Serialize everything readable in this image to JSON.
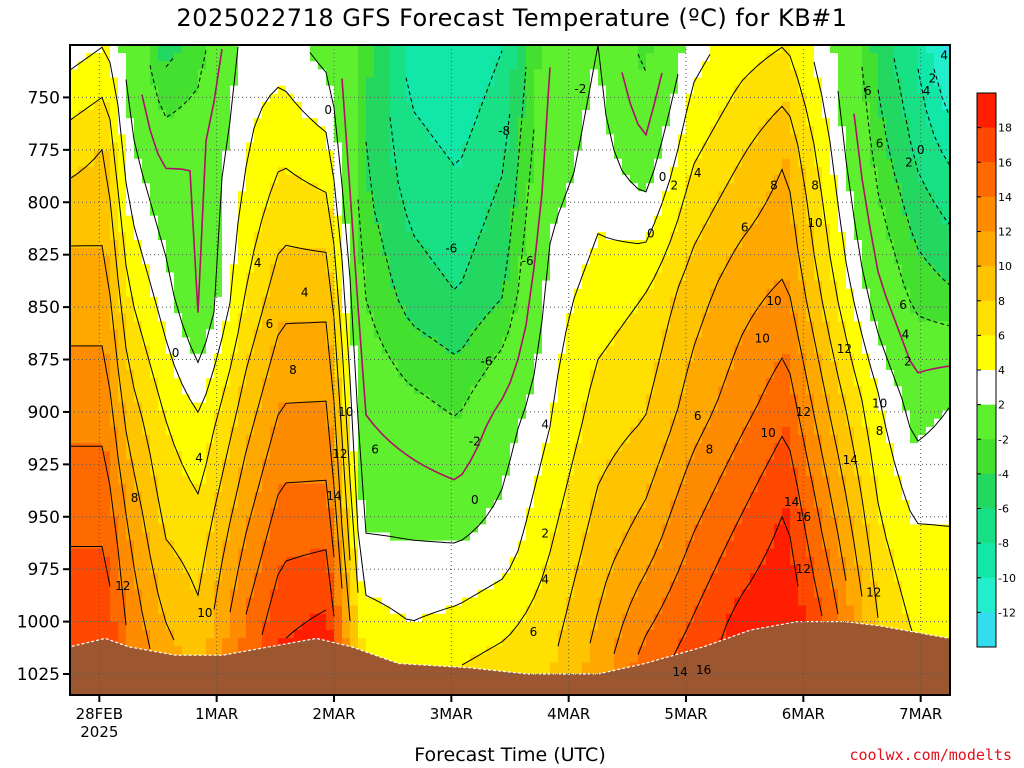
{
  "chart_data": {
    "type": "heatmap",
    "title": "2025022718 GFS Forecast Temperature (ºC) for KB#1",
    "xlabel": "Forecast Time (UTC)",
    "ylabel": "",
    "credit": "coolwx.com/modelts",
    "y_axis": {
      "reversed": true,
      "ylim": [
        1035,
        725
      ],
      "ticks": [
        "750",
        "775",
        "800",
        "825",
        "850",
        "875",
        "900",
        "925",
        "950",
        "975",
        "1000",
        "1025"
      ]
    },
    "x_axis": {
      "ticks": [
        {
          "label": "28FEB",
          "sub": "2025",
          "day": 0.75
        },
        {
          "label": "1MAR",
          "sub": "",
          "day": 1.75
        },
        {
          "label": "2MAR",
          "sub": "",
          "day": 2.75
        },
        {
          "label": "3MAR",
          "sub": "",
          "day": 3.75
        },
        {
          "label": "4MAR",
          "sub": "",
          "day": 4.75
        },
        {
          "label": "5MAR",
          "sub": "",
          "day": 5.75
        },
        {
          "label": "6MAR",
          "sub": "",
          "day": 6.75
        },
        {
          "label": "7MAR",
          "sub": "",
          "day": 7.75
        }
      ],
      "xlim": [
        0.5,
        8.0
      ]
    },
    "grid": true,
    "colorbar": {
      "levels": [
        -14,
        -12,
        -10,
        -8,
        -6,
        -4,
        -2,
        2,
        4,
        6,
        8,
        10,
        12,
        14,
        16,
        18,
        20
      ],
      "labels": [
        "-12",
        "-10",
        "-8",
        "-6",
        "-4",
        "-2",
        "2",
        "4",
        "6",
        "8",
        "10",
        "12",
        "14",
        "16",
        "18"
      ],
      "colors": [
        "#33ddee",
        "#22eecc",
        "#11e8a8",
        "#18e085",
        "#22d860",
        "#44e030",
        "#5ef02e",
        "#ffffff",
        "#ffff00",
        "#ffe000",
        "#ffc400",
        "#ffa800",
        "#ff8c00",
        "#ff6a00",
        "#ff4800",
        "#ff1e00"
      ]
    },
    "temperature_columns": [
      {
        "day": 0.5,
        "p": [
          725,
          1012
        ],
        "t": [
          3,
          7,
          10,
          12,
          14,
          16,
          18
        ]
      },
      {
        "day": 0.8,
        "p": [
          725,
          1012
        ],
        "t": [
          4,
          8,
          10,
          12,
          14,
          16,
          18
        ]
      },
      {
        "day": 1.0,
        "p": [
          725,
          1015
        ],
        "t": [
          1,
          3,
          6,
          9,
          12,
          14
        ]
      },
      {
        "day": 1.3,
        "p": [
          725,
          1018
        ],
        "t": [
          -5,
          0,
          3,
          6,
          8,
          11
        ]
      },
      {
        "day": 1.6,
        "p": [
          725,
          1018
        ],
        "t": [
          -3,
          0,
          -1,
          4,
          7,
          9
        ]
      },
      {
        "day": 2.0,
        "p": [
          725,
          1016
        ],
        "t": [
          3,
          4,
          6,
          9,
          12,
          15
        ]
      },
      {
        "day": 2.3,
        "p": [
          725,
          1010
        ],
        "t": [
          3,
          6,
          9,
          12,
          15,
          18
        ]
      },
      {
        "day": 2.7,
        "p": [
          725,
          1008
        ],
        "t": [
          1,
          5,
          9,
          12,
          15,
          19
        ]
      },
      {
        "day": 3.0,
        "p": [
          725,
          1016
        ],
        "t": [
          -3,
          -4,
          -2,
          0,
          2,
          6
        ]
      },
      {
        "day": 3.4,
        "p": [
          725,
          1020
        ],
        "t": [
          -9,
          -7,
          -5,
          -1,
          2,
          5
        ]
      },
      {
        "day": 3.8,
        "p": [
          725,
          1022
        ],
        "t": [
          -10,
          -8,
          -6,
          -2,
          2,
          6
        ]
      },
      {
        "day": 4.2,
        "p": [
          725,
          1024
        ],
        "t": [
          -8,
          -6,
          -4,
          1,
          3,
          7
        ]
      },
      {
        "day": 4.6,
        "p": [
          725,
          1025
        ],
        "t": [
          0,
          1,
          3,
          4,
          6,
          8
        ]
      },
      {
        "day": 5.0,
        "p": [
          725,
          1025
        ],
        "t": [
          2,
          3,
          5,
          7,
          9,
          11
        ]
      },
      {
        "day": 5.4,
        "p": [
          725,
          1022
        ],
        "t": [
          -3,
          1,
          6,
          8,
          11,
          15
        ]
      },
      {
        "day": 5.8,
        "p": [
          725,
          1018
        ],
        "t": [
          3,
          6,
          9,
          11,
          14,
          17
        ]
      },
      {
        "day": 6.2,
        "p": [
          725,
          1008
        ],
        "t": [
          5,
          8,
          11,
          13,
          16,
          19
        ]
      },
      {
        "day": 6.6,
        "p": [
          725,
          1000
        ],
        "t": [
          6,
          10,
          12,
          15,
          18,
          20
        ]
      },
      {
        "day": 7.0,
        "p": [
          725,
          1000
        ],
        "t": [
          2,
          4,
          6,
          9,
          12,
          15
        ]
      },
      {
        "day": 7.4,
        "p": [
          725,
          1005
        ],
        "t": [
          -5,
          -3,
          0,
          4,
          6,
          8
        ]
      },
      {
        "day": 7.7,
        "p": [
          725,
          1010
        ],
        "t": [
          -8,
          -6,
          -3,
          1,
          4,
          6
        ]
      },
      {
        "day": 8.0,
        "p": [
          725,
          1012
        ],
        "t": [
          -13,
          -8,
          -4,
          2,
          4,
          6
        ]
      }
    ],
    "terrain_surface_pressure": [
      {
        "day": 0.5,
        "p": 1012
      },
      {
        "day": 0.8,
        "p": 1008
      },
      {
        "day": 1.0,
        "p": 1012
      },
      {
        "day": 1.4,
        "p": 1016
      },
      {
        "day": 1.8,
        "p": 1016
      },
      {
        "day": 2.2,
        "p": 1012
      },
      {
        "day": 2.6,
        "p": 1008
      },
      {
        "day": 2.9,
        "p": 1012
      },
      {
        "day": 3.3,
        "p": 1020
      },
      {
        "day": 3.9,
        "p": 1022
      },
      {
        "day": 4.4,
        "p": 1025
      },
      {
        "day": 5.0,
        "p": 1025
      },
      {
        "day": 5.4,
        "p": 1020
      },
      {
        "day": 5.9,
        "p": 1012
      },
      {
        "day": 6.3,
        "p": 1004
      },
      {
        "day": 6.7,
        "p": 1000
      },
      {
        "day": 7.1,
        "p": 1000
      },
      {
        "day": 7.4,
        "p": 1002
      },
      {
        "day": 7.8,
        "p": 1006
      },
      {
        "day": 8.0,
        "p": 1008
      }
    ],
    "contour_labels": [
      {
        "text": "0",
        "day": 2.7,
        "p": 756
      },
      {
        "text": "0",
        "day": 1.4,
        "p": 872
      },
      {
        "text": "4",
        "day": 2.1,
        "p": 829
      },
      {
        "text": "4",
        "day": 2.5,
        "p": 843
      },
      {
        "text": "6",
        "day": 2.2,
        "p": 858
      },
      {
        "text": "8",
        "day": 2.4,
        "p": 880
      },
      {
        "text": "10",
        "day": 2.85,
        "p": 900
      },
      {
        "text": "12",
        "day": 2.8,
        "p": 920
      },
      {
        "text": "14",
        "day": 2.75,
        "p": 940
      },
      {
        "text": "4",
        "day": 1.6,
        "p": 922
      },
      {
        "text": "8",
        "day": 1.05,
        "p": 941
      },
      {
        "text": "12",
        "day": 0.95,
        "p": 983
      },
      {
        "text": "10",
        "day": 1.65,
        "p": 996
      },
      {
        "text": "-2",
        "day": 4.85,
        "p": 746
      },
      {
        "text": "-8",
        "day": 4.2,
        "p": 766
      },
      {
        "text": "-6",
        "day": 3.75,
        "p": 822
      },
      {
        "text": "-6",
        "day": 4.4,
        "p": 828
      },
      {
        "text": "-6",
        "day": 4.05,
        "p": 876
      },
      {
        "text": "4",
        "day": 4.55,
        "p": 906
      },
      {
        "text": "-2",
        "day": 3.95,
        "p": 914
      },
      {
        "text": "0",
        "day": 3.95,
        "p": 942
      },
      {
        "text": "2",
        "day": 4.55,
        "p": 958
      },
      {
        "text": "4",
        "day": 4.55,
        "p": 980
      },
      {
        "text": "6",
        "day": 4.45,
        "p": 1005
      },
      {
        "text": "0",
        "day": 5.55,
        "p": 788
      },
      {
        "text": "2",
        "day": 5.65,
        "p": 792
      },
      {
        "text": "4",
        "day": 5.85,
        "p": 786
      },
      {
        "text": "0",
        "day": 5.45,
        "p": 815
      },
      {
        "text": "6",
        "day": 6.25,
        "p": 812
      },
      {
        "text": "8",
        "day": 6.5,
        "p": 792
      },
      {
        "text": "8",
        "day": 6.85,
        "p": 792
      },
      {
        "text": "10",
        "day": 6.85,
        "p": 810
      },
      {
        "text": "10",
        "day": 6.5,
        "p": 847
      },
      {
        "text": "10",
        "day": 6.4,
        "p": 865
      },
      {
        "text": "6",
        "day": 5.85,
        "p": 902
      },
      {
        "text": "8",
        "day": 5.95,
        "p": 918
      },
      {
        "text": "10",
        "day": 6.45,
        "p": 910
      },
      {
        "text": "12",
        "day": 6.75,
        "p": 975
      },
      {
        "text": "12",
        "day": 6.75,
        "p": 900
      },
      {
        "text": "12",
        "day": 7.1,
        "p": 870
      },
      {
        "text": "14",
        "day": 7.15,
        "p": 923
      },
      {
        "text": "14",
        "day": 6.65,
        "p": 943
      },
      {
        "text": "16",
        "day": 6.75,
        "p": 950
      },
      {
        "text": "12",
        "day": 7.35,
        "p": 986
      },
      {
        "text": "10",
        "day": 7.4,
        "p": 896
      },
      {
        "text": "8",
        "day": 7.4,
        "p": 909
      },
      {
        "text": "6",
        "day": 7.4,
        "p": 772
      },
      {
        "text": "4",
        "day": 7.8,
        "p": 747
      },
      {
        "text": "6",
        "day": 7.3,
        "p": 747
      },
      {
        "text": "4",
        "day": 7.95,
        "p": 730
      },
      {
        "text": "2",
        "day": 7.85,
        "p": 741
      },
      {
        "text": "0",
        "day": 7.75,
        "p": 775
      },
      {
        "text": "2",
        "day": 7.65,
        "p": 781
      },
      {
        "text": "6",
        "day": 7.6,
        "p": 849
      },
      {
        "text": "4",
        "day": 7.62,
        "p": 863
      },
      {
        "text": "2",
        "day": 7.64,
        "p": 876
      },
      {
        "text": "6",
        "day": 3.1,
        "p": 918
      },
      {
        "text": "14",
        "day": 5.7,
        "p": 1024
      },
      {
        "text": "16",
        "day": 5.9,
        "p": 1023
      }
    ]
  }
}
